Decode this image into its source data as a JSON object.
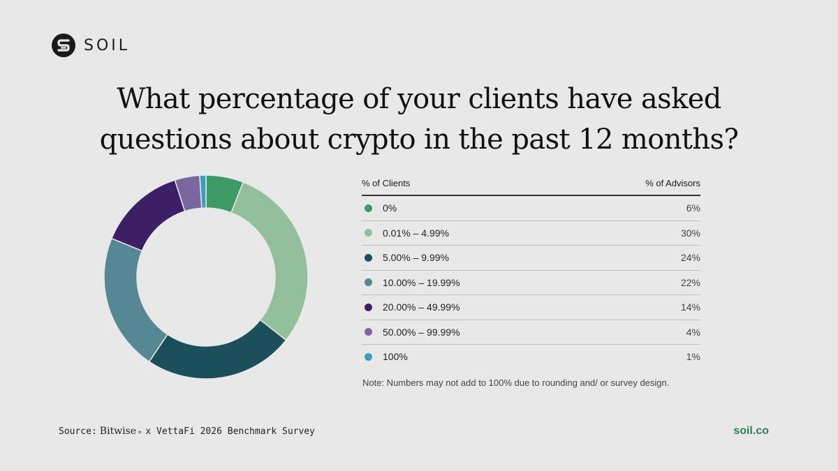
{
  "brand": {
    "name": "SOIL"
  },
  "title": {
    "line1": "What percentage of your clients have asked",
    "line2": "questions about crypto in the past 12 months?"
  },
  "table": {
    "header_left": "% of Clients",
    "header_right": "% of Advisors",
    "rows": [
      {
        "label": "0%",
        "value": "6%"
      },
      {
        "label": "0.01% – 4.99%",
        "value": "30%"
      },
      {
        "label": "5.00% – 9.99%",
        "value": "24%"
      },
      {
        "label": "10.00% – 19.99%",
        "value": "22%"
      },
      {
        "label": "20.00% – 49.99%",
        "value": "14%"
      },
      {
        "label": "50.00% – 99.99%",
        "value": "4%"
      },
      {
        "label": "100%",
        "value": "1%"
      }
    ]
  },
  "note": "Note: Numbers may not add to 100% due to rounding and/ or survey design.",
  "source": {
    "prefix": "Source:",
    "brand": "Bitwise",
    "reg": "®",
    "suffix": "x VettaFi 2026 Benchmark Survey"
  },
  "site": "soil.co",
  "chart_data": {
    "type": "pie",
    "style": "donut",
    "title": "What percentage of your clients have asked questions about crypto in the past 12 months?",
    "categories": [
      "0%",
      "0.01% – 4.99%",
      "5.00% – 9.99%",
      "10.00% – 19.99%",
      "20.00% – 49.99%",
      "50.00% – 99.99%",
      "100%"
    ],
    "values": [
      6,
      30,
      24,
      22,
      14,
      4,
      1
    ],
    "colors": [
      "#3d9a64",
      "#93bf9d",
      "#1b4f5c",
      "#568795",
      "#3c1f64",
      "#7b66a0",
      "#3f9dbb"
    ],
    "legend": "right"
  }
}
